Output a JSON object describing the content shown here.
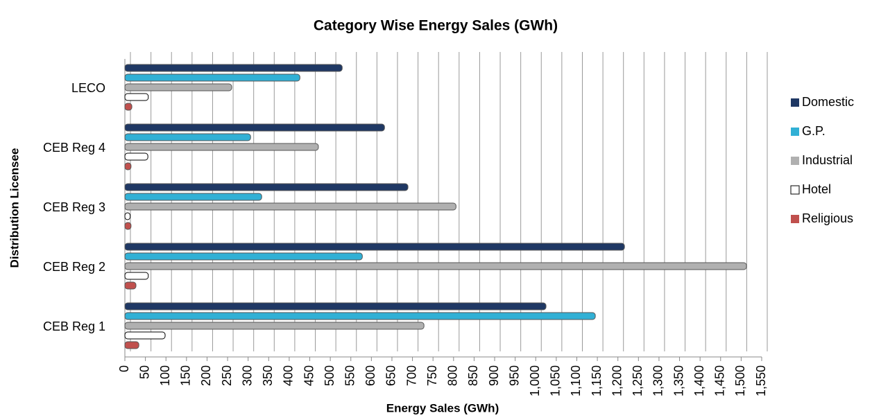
{
  "chart_data": {
    "type": "bar",
    "orientation": "horizontal",
    "title": "Category Wise Energy Sales (GWh)",
    "x_label": "Energy Sales (GWh)",
    "y_label": "Distribution Licensee",
    "categories": [
      "CEB Reg 1",
      "CEB Reg 2",
      "CEB Reg 3",
      "CEB Reg 4",
      "LECO"
    ],
    "series": [
      {
        "name": "Domestic",
        "color": "#1f3864",
        "values": [
          1025,
          1216,
          689,
          632,
          529
        ]
      },
      {
        "name": "G.P.",
        "color": "#31b0d5",
        "values": [
          1145,
          578,
          333,
          306,
          426
        ]
      },
      {
        "name": "Industrial",
        "color": "#b0b0b0",
        "values": [
          728,
          1513,
          806,
          471,
          260
        ]
      },
      {
        "name": "Hotel",
        "color": "#ffffff",
        "values": [
          98,
          57,
          13,
          56,
          57
        ]
      },
      {
        "name": "Religious",
        "color": "#c0504d",
        "values": [
          34,
          27,
          15,
          15,
          17
        ]
      }
    ],
    "xlim": [
      0,
      1550
    ],
    "xticks": [
      0,
      50,
      100,
      150,
      200,
      250,
      300,
      350,
      400,
      450,
      500,
      550,
      600,
      650,
      700,
      750,
      800,
      850,
      900,
      950,
      {
        "value": 1000,
        "label": "1,000"
      },
      {
        "value": 1050,
        "label": "1,050"
      },
      {
        "value": 1100,
        "label": "1,100"
      },
      {
        "value": 1150,
        "label": "1,150"
      },
      {
        "value": 1200,
        "label": "1,200"
      },
      {
        "value": 1250,
        "label": "1,250"
      },
      {
        "value": 1300,
        "label": "1,300"
      },
      {
        "value": 1350,
        "label": "1,350"
      },
      {
        "value": 1400,
        "label": "1,400"
      },
      {
        "value": 1450,
        "label": "1,450"
      },
      {
        "value": 1500,
        "label": "1,500"
      },
      {
        "value": 1550,
        "label": "1,550"
      }
    ],
    "grid": true,
    "legend": "right"
  }
}
